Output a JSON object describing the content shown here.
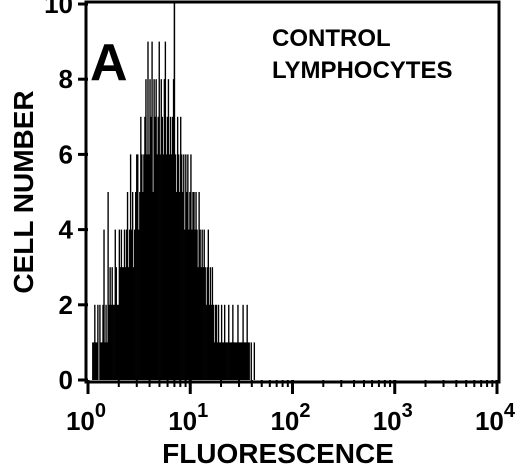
{
  "chart_data": {
    "type": "histogram",
    "panel_label": "A",
    "annotation_lines": [
      "CONTROL",
      "LYMPHOCYTES"
    ],
    "xlabel": "FLUORESCENCE",
    "ylabel": "CELL NUMBER",
    "x_scale": "log",
    "xlim": [
      1,
      10000
    ],
    "ylim": [
      0,
      10
    ],
    "x_ticks": [
      {
        "base": "10",
        "exp": "0"
      },
      {
        "base": "10",
        "exp": "1"
      },
      {
        "base": "10",
        "exp": "2"
      },
      {
        "base": "10",
        "exp": "3"
      },
      {
        "base": "10",
        "exp": "4"
      }
    ],
    "y_ticks": [
      "0",
      "2",
      "4",
      "6",
      "8",
      "10"
    ],
    "marker_x": 7,
    "bins_log10_start": 0.04,
    "bins_log10_width": 0.01,
    "counts": [
      1,
      1,
      2,
      1,
      1,
      2,
      0,
      2,
      1,
      1,
      2,
      4,
      1,
      2,
      1,
      5,
      2,
      3,
      2,
      3,
      2,
      2,
      4,
      3,
      2,
      2,
      4,
      3,
      4,
      3,
      3,
      4,
      3,
      4,
      5,
      3,
      4,
      6,
      4,
      5,
      3,
      4,
      5,
      6,
      6,
      4,
      5,
      7,
      6,
      5,
      6,
      7,
      8,
      6,
      9,
      6,
      8,
      7,
      9,
      5,
      8,
      7,
      8,
      6,
      7,
      9,
      6,
      8,
      7,
      6,
      8,
      9,
      6,
      7,
      8,
      6,
      7,
      6,
      7,
      8,
      6,
      6,
      5,
      7,
      6,
      5,
      7,
      6,
      5,
      6,
      4,
      6,
      5,
      6,
      4,
      5,
      6,
      4,
      5,
      5,
      4,
      5,
      4,
      3,
      5,
      4,
      3,
      4,
      3,
      4,
      3,
      2,
      3,
      4,
      2,
      3,
      2,
      3,
      2,
      1,
      2,
      2,
      1,
      2,
      1,
      1,
      2,
      1,
      1,
      2,
      1,
      1,
      1,
      2,
      1,
      1,
      1,
      2,
      1,
      1,
      1,
      1,
      2,
      1,
      1,
      1,
      1,
      2,
      1,
      1,
      1,
      2,
      1,
      1,
      0,
      1,
      0,
      0,
      1,
      0
    ]
  }
}
